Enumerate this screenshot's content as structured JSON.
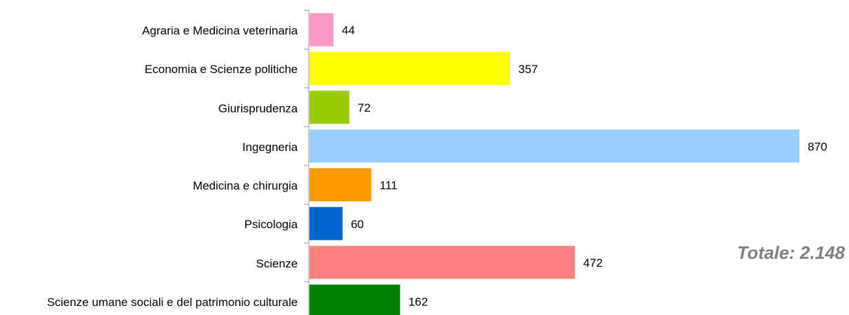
{
  "chart_data": {
    "type": "barh",
    "categories": [
      "Agraria e Medicina veterinaria",
      "Economia e Scienze politiche",
      "Giurisprudenza",
      "Ingegneria",
      "Medicina e chirurgia",
      "Psicologia",
      "Scienze",
      "Scienze umane sociali e del patrimonio culturale"
    ],
    "values": [
      44,
      357,
      72,
      870,
      111,
      60,
      472,
      162
    ],
    "colors": [
      "#ff99cc",
      "#ffff00",
      "#99cc00",
      "#99ccff",
      "#ff9900",
      "#0066cc",
      "#ff8080",
      "#008000"
    ],
    "annotation": "Totale: 2.148"
  }
}
